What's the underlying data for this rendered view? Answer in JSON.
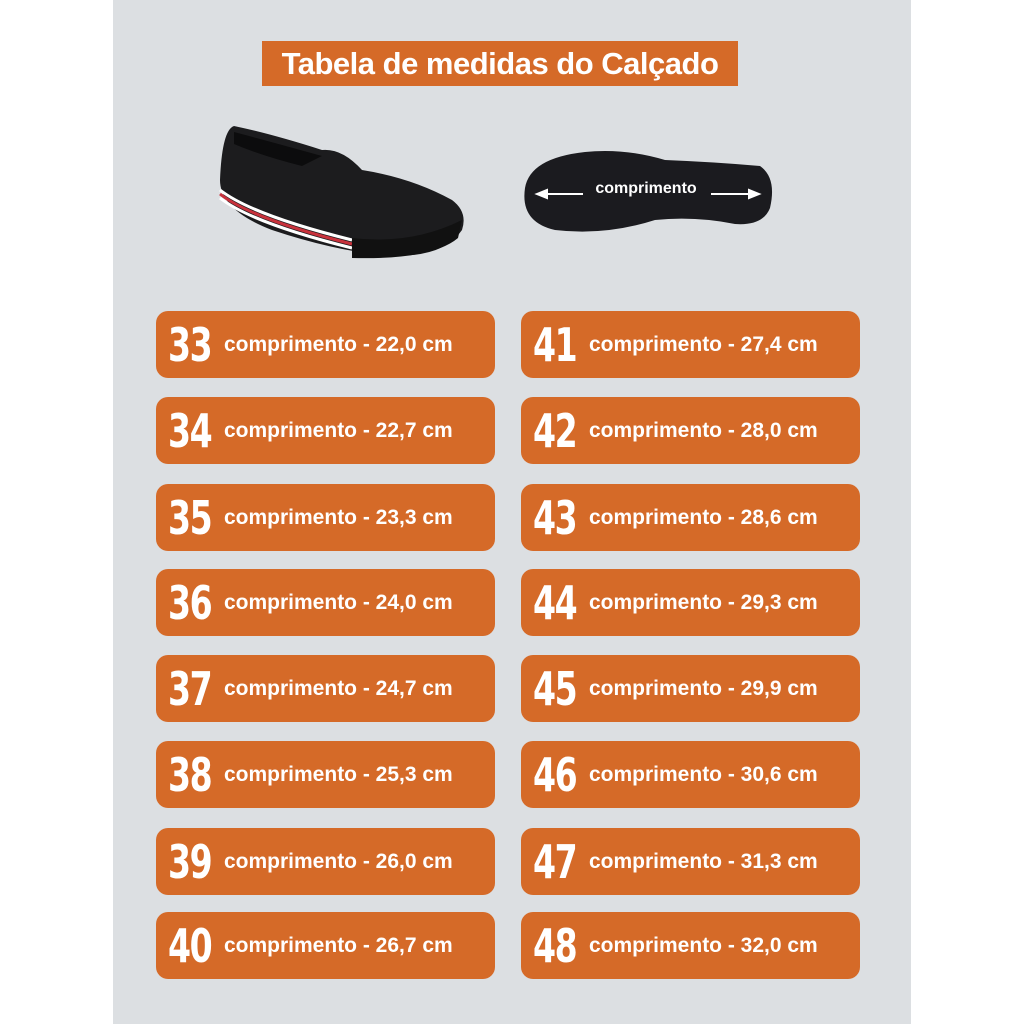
{
  "title": "Tabela de medidas do Calçado",
  "insole_label": "comprimento",
  "colors": {
    "accent": "#d56a28",
    "background": "#dcdfe2"
  },
  "left_column": [
    {
      "size": "33",
      "text": "comprimento - 22,0 cm"
    },
    {
      "size": "34",
      "text": "comprimento - 22,7 cm"
    },
    {
      "size": "35",
      "text": "comprimento - 23,3 cm"
    },
    {
      "size": "36",
      "text": "comprimento - 24,0 cm"
    },
    {
      "size": "37",
      "text": "comprimento - 24,7 cm"
    },
    {
      "size": "38",
      "text": "comprimento - 25,3 cm"
    },
    {
      "size": "39",
      "text": "comprimento - 26,0 cm"
    },
    {
      "size": "40",
      "text": "comprimento - 26,7 cm"
    }
  ],
  "right_column": [
    {
      "size": "41",
      "text": "comprimento - 27,4 cm"
    },
    {
      "size": "42",
      "text": "comprimento - 28,0 cm"
    },
    {
      "size": "43",
      "text": "comprimento - 28,6 cm"
    },
    {
      "size": "44",
      "text": "comprimento - 29,3 cm"
    },
    {
      "size": "45",
      "text": "comprimento - 29,9 cm"
    },
    {
      "size": "46",
      "text": "comprimento - 30,6 cm"
    },
    {
      "size": "47",
      "text": "comprimento - 31,3 cm"
    },
    {
      "size": "48",
      "text": "comprimento - 32,0 cm"
    }
  ]
}
